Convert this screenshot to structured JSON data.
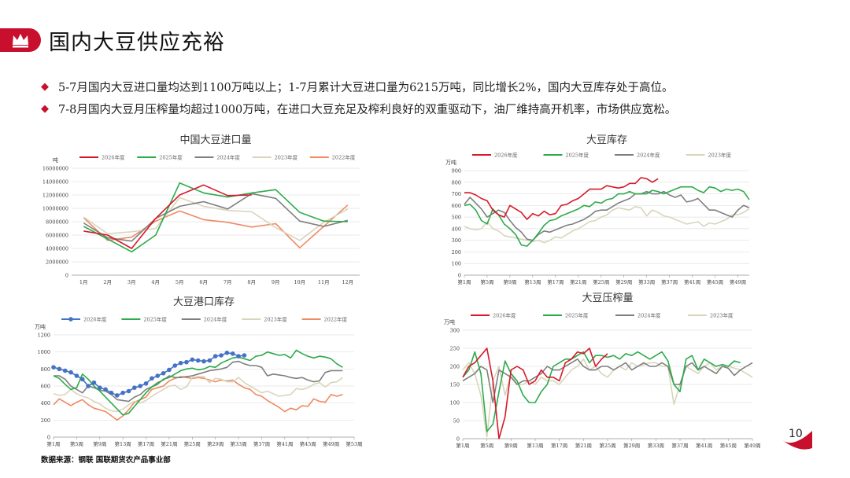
{
  "page": {
    "title": "国内大豆供应充裕",
    "bullets": [
      "5-7月国内大豆进口量均达到1100万吨以上；1-7月累计大豆进口量为6215万吨，同比增长2%，国内大豆库存处于高位。",
      "7-8月国内大豆月压榨量均超过1000万吨，在进口大豆充足及榨利良好的双重驱动下，油厂维持高开机率，市场供应宽松。"
    ],
    "source": "数据来源：钢联 国联期货农产品事业部",
    "page_number": "10",
    "accent_color": "#c8102e"
  },
  "chart_data": [
    {
      "id": "c1",
      "type": "line",
      "title": "中国大豆进口量",
      "ylabel": "吨",
      "ylim": [
        0,
        16000000
      ],
      "yticks": [
        0,
        2000000,
        4000000,
        6000000,
        8000000,
        10000000,
        12000000,
        14000000,
        16000000
      ],
      "categories": [
        "1月",
        "2月",
        "3月",
        "4月",
        "5月",
        "6月",
        "7月",
        "8月",
        "9月",
        "10月",
        "11月",
        "12月"
      ],
      "legend_position": "top",
      "series": [
        {
          "name": "2026年度",
          "color": "#d7192a",
          "values": [
            6600000,
            6000000,
            4000000,
            8500000,
            12000000,
            13500000,
            11900000,
            12000000,
            null,
            null,
            null,
            null
          ]
        },
        {
          "name": "2025年度",
          "color": "#2cab4a",
          "values": [
            7300000,
            5400000,
            3500000,
            6000000,
            13800000,
            12300000,
            11700000,
            12300000,
            12800000,
            9400000,
            8100000,
            8000000
          ]
        },
        {
          "name": "2024年度",
          "color": "#7f7f7f",
          "values": [
            7800000,
            5600000,
            5100000,
            8500000,
            10300000,
            11000000,
            9900000,
            12200000,
            11500000,
            8100000,
            7300000,
            8200000
          ]
        },
        {
          "name": "2023年度",
          "color": "#d9d5bc",
          "values": [
            8700000,
            6200000,
            6500000,
            7000000,
            11600000,
            10300000,
            9700000,
            9500000,
            7100000,
            5200000,
            7900000,
            9900000
          ]
        },
        {
          "name": "2022年度",
          "color": "#ef8a62",
          "values": [
            8600000,
            5200000,
            5700000,
            8100000,
            9600000,
            8300000,
            7900000,
            7200000,
            7700000,
            4100000,
            7300000,
            10500000
          ]
        }
      ]
    },
    {
      "id": "c2",
      "type": "line",
      "title": "大豆库存",
      "ylabel": "万吨",
      "ylim": [
        0,
        900
      ],
      "yticks": [
        0,
        100,
        200,
        300,
        400,
        500,
        600,
        700,
        800,
        900
      ],
      "week_labels": [
        "第1周",
        "第5周",
        "第9周",
        "第13周",
        "第17周",
        "第21周",
        "第25周",
        "第29周",
        "第33周",
        "第37周",
        "第41周",
        "第45周",
        "第49周"
      ],
      "legend_position": "top",
      "series": [
        {
          "name": "2026年度",
          "color": "#d7192a",
          "values": [
            710,
            710,
            690,
            660,
            640,
            560,
            520,
            500,
            600,
            570,
            540,
            480,
            530,
            510,
            550,
            520,
            530,
            600,
            610,
            640,
            660,
            700,
            740,
            740,
            740,
            770,
            760,
            750,
            760,
            790,
            790,
            840,
            830,
            800,
            830
          ]
        },
        {
          "name": "2025年度",
          "color": "#2cab4a",
          "values": [
            600,
            610,
            560,
            470,
            440,
            570,
            520,
            440,
            400,
            350,
            260,
            250,
            300,
            360,
            430,
            470,
            480,
            510,
            530,
            550,
            570,
            600,
            590,
            630,
            620,
            650,
            660,
            700,
            700,
            720,
            700,
            700,
            700,
            730,
            720,
            700,
            720,
            740,
            760,
            760,
            760,
            730,
            710,
            760,
            750,
            720,
            740,
            730,
            740,
            720,
            650
          ]
        },
        {
          "name": "2024年度",
          "color": "#7f7f7f",
          "values": [
            610,
            670,
            620,
            570,
            500,
            530,
            560,
            540,
            470,
            410,
            370,
            310,
            300,
            350,
            380,
            370,
            390,
            410,
            430,
            440,
            460,
            480,
            510,
            550,
            560,
            560,
            590,
            620,
            640,
            660,
            700,
            700,
            720,
            700,
            700,
            720,
            690,
            670,
            690,
            630,
            640,
            660,
            610,
            560,
            560,
            540,
            520,
            500,
            560,
            600,
            580
          ]
        },
        {
          "name": "2023年度",
          "color": "#d9d5bc",
          "values": [
            420,
            400,
            390,
            400,
            460,
            400,
            380,
            340,
            330,
            320,
            310,
            300,
            290,
            300,
            280,
            300,
            330,
            320,
            350,
            380,
            400,
            430,
            460,
            470,
            500,
            520,
            560,
            580,
            570,
            560,
            590,
            580,
            510,
            560,
            540,
            510,
            500,
            480,
            460,
            440,
            450,
            460,
            420,
            450,
            440,
            460,
            480,
            520,
            520,
            540,
            570
          ]
        }
      ]
    },
    {
      "id": "c3",
      "type": "line",
      "title": "大豆港口库存",
      "ylabel": "万吨",
      "ylim": [
        0,
        1200
      ],
      "yticks": [
        0,
        200,
        400,
        600,
        800,
        1000,
        1200
      ],
      "week_labels": [
        "第1周",
        "第5周",
        "第9周",
        "第13周",
        "第17周",
        "第21周",
        "第25周",
        "第29周",
        "第33周",
        "第37周",
        "第41周",
        "第45周",
        "第49周",
        "第53周"
      ],
      "legend_position": "top",
      "series": [
        {
          "name": "2026年度",
          "color": "#4472c4",
          "marker_color": "#4472c4",
          "values": [
            820,
            800,
            780,
            760,
            720,
            680,
            600,
            640,
            580,
            560,
            520,
            490,
            520,
            540,
            580,
            600,
            630,
            690,
            720,
            750,
            790,
            840,
            870,
            880,
            910,
            900,
            890,
            900,
            950,
            960,
            990,
            980,
            950,
            960
          ]
        },
        {
          "name": "2025年度",
          "color": "#2cab4a",
          "values": [
            720,
            690,
            620,
            560,
            580,
            740,
            680,
            600,
            540,
            470,
            400,
            330,
            260,
            280,
            360,
            440,
            520,
            590,
            620,
            680,
            700,
            740,
            780,
            800,
            810,
            790,
            800,
            830,
            820,
            870,
            900,
            930,
            940,
            920,
            900,
            950,
            960,
            1000,
            980,
            960,
            970,
            930,
            1020,
            980,
            950,
            930,
            950,
            940,
            920,
            860,
            820
          ]
        },
        {
          "name": "2024年度",
          "color": "#7f7f7f",
          "values": [
            720,
            720,
            680,
            600,
            560,
            520,
            600,
            580,
            550,
            540,
            500,
            440,
            430,
            420,
            470,
            500,
            560,
            590,
            640,
            670,
            720,
            700,
            700,
            710,
            720,
            740,
            760,
            780,
            790,
            800,
            820,
            880,
            890,
            860,
            840,
            840,
            820,
            720,
            740,
            730,
            720,
            700,
            690,
            700,
            670,
            650,
            660,
            760,
            780,
            780,
            780
          ]
        },
        {
          "name": "2023年度",
          "color": "#d9d5bc",
          "values": [
            510,
            490,
            500,
            560,
            510,
            480,
            460,
            420,
            390,
            340,
            310,
            300,
            330,
            380,
            420,
            400,
            430,
            480,
            520,
            560,
            600,
            610,
            560,
            590,
            700,
            710,
            710,
            640,
            690,
            680,
            650,
            650,
            700,
            640,
            600,
            560,
            520,
            540,
            510,
            480,
            490,
            500,
            570,
            560,
            580,
            620,
            640,
            590,
            640,
            650,
            700
          ]
        },
        {
          "name": "2022年度",
          "color": "#ef8a62",
          "values": [
            380,
            450,
            410,
            370,
            410,
            440,
            380,
            340,
            320,
            300,
            250,
            200,
            250,
            320,
            410,
            440,
            470,
            560,
            580,
            600,
            660,
            690,
            710,
            700,
            690,
            700,
            690,
            670,
            650,
            670,
            660,
            670,
            620,
            580,
            560,
            500,
            480,
            430,
            390,
            350,
            300,
            340,
            320,
            370,
            360,
            450,
            420,
            410,
            500,
            480,
            500
          ]
        }
      ]
    },
    {
      "id": "c4",
      "type": "line",
      "title": "大豆压榨量",
      "ylabel": "万吨",
      "ylim": [
        0,
        300
      ],
      "yticks": [
        0,
        50,
        100,
        150,
        200,
        250,
        300
      ],
      "week_labels": [
        "第1周",
        "第5周",
        "第9周",
        "第13周",
        "第17周",
        "第21周",
        "第25周",
        "第29周",
        "第33周",
        "第37周",
        "第41周",
        "第45周",
        "第49周"
      ],
      "legend_position": "top",
      "series": [
        {
          "name": "2026年度",
          "color": "#d7192a",
          "values": [
            170,
            200,
            210,
            230,
            250,
            160,
            0,
            60,
            190,
            200,
            190,
            150,
            160,
            190,
            170,
            170,
            160,
            210,
            220,
            240,
            235,
            250,
            200,
            220,
            235
          ]
        },
        {
          "name": "2025年度",
          "color": "#2cab4a",
          "values": [
            170,
            190,
            240,
            180,
            20,
            40,
            130,
            215,
            180,
            160,
            120,
            100,
            100,
            130,
            150,
            200,
            210,
            220,
            220,
            230,
            240,
            210,
            230,
            230,
            225,
            230,
            220,
            235,
            230,
            240,
            230,
            220,
            230,
            240,
            215,
            150,
            130,
            220,
            230,
            190,
            220,
            210,
            200,
            205,
            200,
            215,
            210
          ]
        },
        {
          "name": "2024年度",
          "color": "#7f7f7f",
          "values": [
            160,
            170,
            180,
            200,
            190,
            100,
            190,
            180,
            170,
            150,
            160,
            160,
            170,
            180,
            200,
            190,
            190,
            200,
            210,
            220,
            200,
            190,
            190,
            200,
            200,
            190,
            200,
            210,
            190,
            200,
            210,
            200,
            200,
            210,
            200,
            150,
            150,
            200,
            210,
            190,
            200,
            190,
            180,
            200,
            195,
            175,
            190,
            200,
            210
          ]
        },
        {
          "name": "2023年度",
          "color": "#d9d5bc",
          "values": [
            190,
            210,
            180,
            120,
            5,
            160,
            200,
            120,
            180,
            150,
            150,
            160,
            150,
            170,
            160,
            160,
            150,
            170,
            190,
            200,
            220,
            190,
            200,
            180,
            170,
            190,
            200,
            190,
            210,
            200,
            205,
            210,
            210,
            200,
            200,
            95,
            150,
            200,
            190,
            180,
            200,
            210,
            190,
            200,
            200,
            195,
            190,
            180,
            170
          ]
        }
      ]
    }
  ]
}
